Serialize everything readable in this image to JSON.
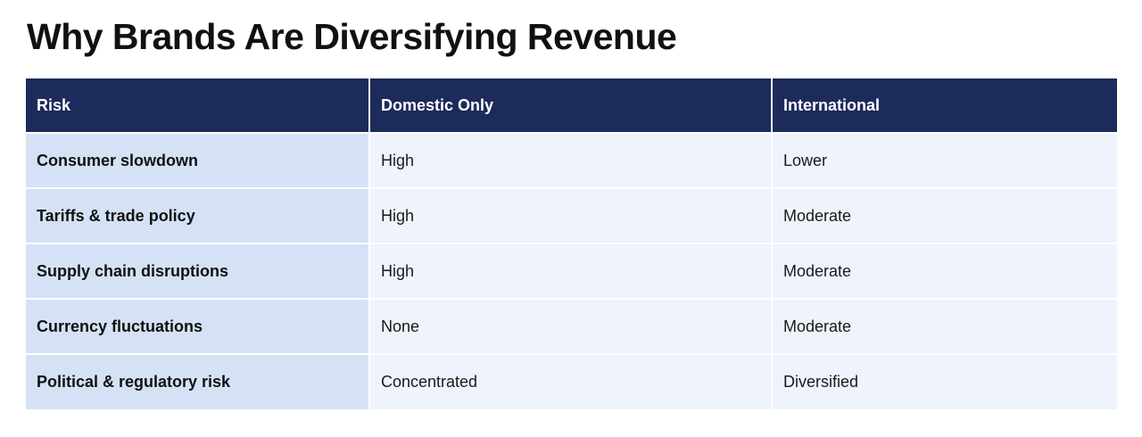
{
  "title": "Why Brands Are Diversifying Revenue",
  "table": {
    "headers": [
      "Risk",
      "Domestic Only",
      "International"
    ],
    "rows": [
      [
        "Consumer slowdown",
        "High",
        "Lower"
      ],
      [
        "Tariffs & trade policy",
        "High",
        "Moderate"
      ],
      [
        "Supply chain disruptions",
        "High",
        "Moderate"
      ],
      [
        "Currency fluctuations",
        "None",
        "Moderate"
      ],
      [
        "Political & regulatory risk",
        "Concentrated",
        "Diversified"
      ]
    ]
  },
  "colors": {
    "header_bg": "#1d2b5c",
    "first_col_bg": "#d5e2f5",
    "cell_bg": "#eef3fc"
  }
}
